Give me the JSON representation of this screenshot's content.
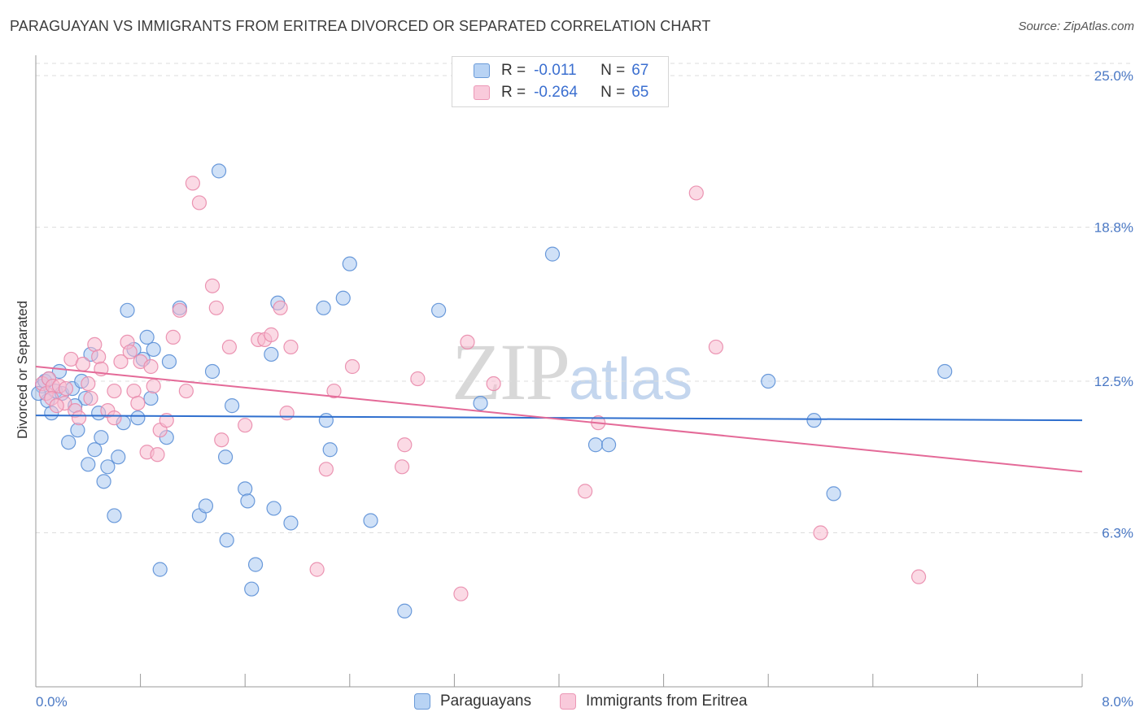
{
  "header": {
    "title": "PARAGUAYAN VS IMMIGRANTS FROM ERITREA DIVORCED OR SEPARATED CORRELATION CHART",
    "source": "Source: ZipAtlas.com"
  },
  "watermark": {
    "zip": "ZIP",
    "atlas": "atlas"
  },
  "legend": {
    "row1": {
      "r_label": "R =",
      "r_value": "-0.011",
      "n_label": "N =",
      "n_value": "67"
    },
    "row2": {
      "r_label": "R =",
      "r_value": "-0.264",
      "n_label": "N =",
      "n_value": "65"
    }
  },
  "bottom_legend": {
    "series1": "Paraguayans",
    "series2": "Immigrants from Eritrea"
  },
  "colors": {
    "blue_fill": "#a9c8f0",
    "blue_stroke": "#5b8fd6",
    "blue_line": "#2f6fce",
    "pink_fill": "#f7bcd0",
    "pink_stroke": "#e98aab",
    "pink_line": "#e46a98",
    "tick_text": "#4a78c4",
    "grid": "#dddddd"
  },
  "chart_data": {
    "type": "scatter",
    "title": "PARAGUAYAN VS IMMIGRANTS FROM ERITREA DIVORCED OR SEPARATED CORRELATION CHART",
    "xlabel": "",
    "ylabel": "Divorced or Separated",
    "xlim": [
      0,
      8
    ],
    "ylim": [
      0,
      25.7
    ],
    "x_tick_labels": [
      "0.0%",
      "8.0%"
    ],
    "y_ticks": [
      6.3,
      12.5,
      18.8,
      25.0
    ],
    "y_tick_labels": [
      "6.3%",
      "12.5%",
      "18.8%",
      "25.0%"
    ],
    "grid": "horizontal dashed",
    "legend_position": "top-center",
    "series": [
      {
        "name": "Paraguayans",
        "r": -0.011,
        "n": 67,
        "trend": {
          "x": [
            0,
            8
          ],
          "y": [
            11.1,
            10.9
          ]
        },
        "points": [
          [
            0.05,
            12.3
          ],
          [
            0.07,
            12.5
          ],
          [
            0.09,
            11.7
          ],
          [
            0.12,
            11.2
          ],
          [
            0.15,
            12.1
          ],
          [
            0.18,
            12.9
          ],
          [
            0.2,
            12.0
          ],
          [
            0.25,
            10.0
          ],
          [
            0.28,
            12.2
          ],
          [
            0.32,
            10.5
          ],
          [
            0.35,
            12.5
          ],
          [
            0.38,
            11.8
          ],
          [
            0.4,
            9.1
          ],
          [
            0.45,
            9.7
          ],
          [
            0.48,
            11.2
          ],
          [
            0.5,
            10.2
          ],
          [
            0.52,
            8.4
          ],
          [
            0.55,
            9.0
          ],
          [
            0.6,
            7.0
          ],
          [
            0.63,
            9.4
          ],
          [
            0.67,
            10.8
          ],
          [
            0.7,
            15.4
          ],
          [
            0.75,
            13.8
          ],
          [
            0.78,
            11.0
          ],
          [
            0.82,
            13.4
          ],
          [
            0.85,
            14.3
          ],
          [
            0.88,
            11.8
          ],
          [
            0.9,
            13.8
          ],
          [
            0.95,
            4.8
          ],
          [
            1.0,
            10.2
          ],
          [
            1.02,
            13.3
          ],
          [
            1.1,
            15.5
          ],
          [
            1.25,
            7.0
          ],
          [
            1.3,
            7.4
          ],
          [
            1.35,
            12.9
          ],
          [
            1.4,
            21.1
          ],
          [
            1.45,
            9.4
          ],
          [
            1.46,
            6.0
          ],
          [
            1.5,
            11.5
          ],
          [
            1.6,
            8.1
          ],
          [
            1.62,
            7.6
          ],
          [
            1.65,
            4.0
          ],
          [
            1.68,
            5.0
          ],
          [
            1.8,
            13.6
          ],
          [
            1.82,
            7.3
          ],
          [
            1.85,
            15.7
          ],
          [
            1.95,
            6.7
          ],
          [
            2.2,
            15.5
          ],
          [
            2.22,
            10.9
          ],
          [
            2.25,
            9.7
          ],
          [
            2.35,
            15.9
          ],
          [
            2.4,
            17.3
          ],
          [
            2.56,
            6.8
          ],
          [
            2.82,
            3.1
          ],
          [
            3.08,
            15.4
          ],
          [
            3.4,
            11.6
          ],
          [
            3.95,
            17.7
          ],
          [
            4.28,
            9.9
          ],
          [
            4.38,
            9.9
          ],
          [
            5.6,
            12.5
          ],
          [
            5.95,
            10.9
          ],
          [
            6.1,
            7.9
          ],
          [
            6.95,
            12.9
          ],
          [
            0.02,
            12.0
          ],
          [
            0.1,
            12.6
          ],
          [
            0.3,
            11.5
          ],
          [
            0.42,
            13.6
          ]
        ]
      },
      {
        "name": "Immigrants from Eritrea",
        "r": -0.264,
        "n": 65,
        "trend": {
          "x": [
            0,
            8
          ],
          "y": [
            13.1,
            8.8
          ]
        },
        "points": [
          [
            0.05,
            12.4
          ],
          [
            0.08,
            12.0
          ],
          [
            0.1,
            12.6
          ],
          [
            0.13,
            12.3
          ],
          [
            0.18,
            12.3
          ],
          [
            0.22,
            11.6
          ],
          [
            0.27,
            13.4
          ],
          [
            0.3,
            11.3
          ],
          [
            0.33,
            11.0
          ],
          [
            0.36,
            13.2
          ],
          [
            0.4,
            12.4
          ],
          [
            0.42,
            11.8
          ],
          [
            0.45,
            14.0
          ],
          [
            0.48,
            13.5
          ],
          [
            0.55,
            11.3
          ],
          [
            0.6,
            12.1
          ],
          [
            0.65,
            13.3
          ],
          [
            0.7,
            14.1
          ],
          [
            0.72,
            13.7
          ],
          [
            0.75,
            12.1
          ],
          [
            0.78,
            11.6
          ],
          [
            0.8,
            13.3
          ],
          [
            0.85,
            9.6
          ],
          [
            0.88,
            13.1
          ],
          [
            0.9,
            12.3
          ],
          [
            0.93,
            9.5
          ],
          [
            0.95,
            10.5
          ],
          [
            1.0,
            10.9
          ],
          [
            1.05,
            14.3
          ],
          [
            1.1,
            15.4
          ],
          [
            1.15,
            12.1
          ],
          [
            1.2,
            20.6
          ],
          [
            1.25,
            19.8
          ],
          [
            1.35,
            16.4
          ],
          [
            1.38,
            15.5
          ],
          [
            1.42,
            10.1
          ],
          [
            1.48,
            13.9
          ],
          [
            1.6,
            10.7
          ],
          [
            1.7,
            14.2
          ],
          [
            1.75,
            14.2
          ],
          [
            1.8,
            14.4
          ],
          [
            1.87,
            15.5
          ],
          [
            1.92,
            11.2
          ],
          [
            1.95,
            13.9
          ],
          [
            2.15,
            4.8
          ],
          [
            2.22,
            8.9
          ],
          [
            2.28,
            12.1
          ],
          [
            2.42,
            13.1
          ],
          [
            2.8,
            9.0
          ],
          [
            2.82,
            9.9
          ],
          [
            2.92,
            12.6
          ],
          [
            3.25,
            3.8
          ],
          [
            3.3,
            14.1
          ],
          [
            3.5,
            12.4
          ],
          [
            4.2,
            8.0
          ],
          [
            4.3,
            10.8
          ],
          [
            5.05,
            20.2
          ],
          [
            5.2,
            13.9
          ],
          [
            6.0,
            6.3
          ],
          [
            6.75,
            4.5
          ],
          [
            0.6,
            11.0
          ],
          [
            0.12,
            11.8
          ],
          [
            0.23,
            12.2
          ],
          [
            0.5,
            13.0
          ],
          [
            0.16,
            11.5
          ]
        ]
      }
    ]
  }
}
